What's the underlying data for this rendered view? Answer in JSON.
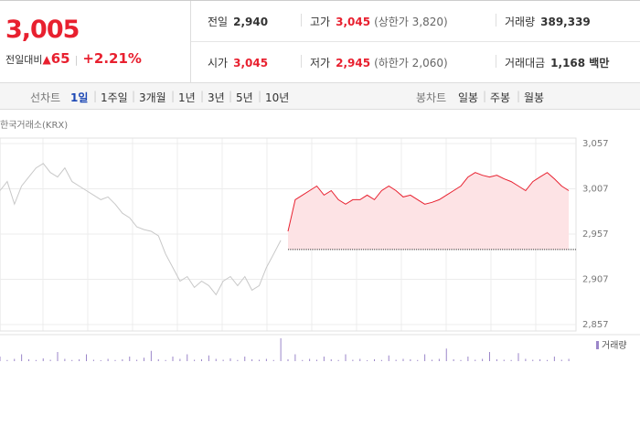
{
  "header": {
    "price": "3,005",
    "change_label": "전일대비",
    "change": "65",
    "rate": "+2.21%",
    "stats": [
      [
        {
          "label": "전일",
          "value": "2,940"
        },
        {
          "label": "고가",
          "value": "3,045",
          "note": "(상한가 3,820)"
        },
        {
          "label": "거래량",
          "value": "389,339"
        }
      ],
      [
        {
          "label": "시가",
          "value": "3,045"
        },
        {
          "label": "저가",
          "value": "2,945",
          "note": "(하한가 2,060)"
        },
        {
          "label": "거래대금",
          "value": "1,168 백만"
        }
      ]
    ]
  },
  "tabs": {
    "line_label": "선차트",
    "line": [
      "1일",
      "1주일",
      "3개월",
      "1년",
      "3년",
      "5년",
      "10년"
    ],
    "candle_label": "봉차트",
    "candle": [
      "일봉",
      "주봉",
      "월봉"
    ]
  },
  "chart_data": {
    "type": "line",
    "source": "한국거래소(KRX)",
    "x": [
      0,
      1,
      2,
      3,
      4,
      5,
      6,
      7,
      8,
      9,
      10,
      11,
      12,
      13,
      14,
      15,
      16,
      17,
      18,
      19,
      20,
      21,
      22,
      23,
      24,
      25,
      26,
      27,
      28,
      29,
      30,
      31,
      32,
      33,
      34,
      35,
      36,
      37,
      38,
      39,
      40,
      41,
      42,
      43,
      44,
      45,
      46,
      47,
      48,
      49,
      50,
      51,
      52,
      53,
      54,
      55,
      56,
      57,
      58,
      59,
      60,
      61,
      62,
      63,
      64,
      65,
      66,
      67,
      68,
      69,
      70,
      71,
      72,
      73,
      74,
      75,
      76,
      77,
      78,
      79
    ],
    "xlim": [
      0,
      80
    ],
    "ylim": [
      2857,
      3057
    ],
    "yticks": [
      {
        "value": 2857,
        "label": "2,857"
      },
      {
        "value": 2907,
        "label": "2,907"
      },
      {
        "value": 2957,
        "label": "2,957"
      },
      {
        "value": 3007,
        "label": "3,007"
      },
      {
        "value": 3057,
        "label": "3,057"
      }
    ],
    "base": 2940,
    "base_color": "#333333",
    "area_color": "#fde3e5",
    "series": [
      {
        "color": "#c8c8c8",
        "values": [
          3005,
          3015,
          2990,
          3010,
          3020,
          3030,
          3035,
          3025,
          3020,
          3030,
          3015,
          3010,
          3005,
          3000,
          2995,
          2998,
          2990,
          2980,
          2975,
          2965,
          2962,
          2960,
          2955,
          2935,
          2920,
          2905,
          2910,
          2898,
          2905,
          2900,
          2890,
          2905,
          2910,
          2900,
          2910,
          2895,
          2900,
          2920,
          2935,
          2950,
          null,
          null,
          null,
          null,
          null,
          null,
          null,
          null,
          null,
          null,
          null,
          null,
          null,
          null,
          null,
          null,
          null,
          null,
          null,
          null,
          null,
          null,
          null,
          null,
          null,
          null,
          null,
          null,
          null,
          null,
          null,
          null,
          null,
          null,
          null,
          null,
          null,
          null,
          null,
          null
        ]
      },
      {
        "color": "#e8202f",
        "values": [
          null,
          null,
          null,
          null,
          null,
          null,
          null,
          null,
          null,
          null,
          null,
          null,
          null,
          null,
          null,
          null,
          null,
          null,
          null,
          null,
          null,
          null,
          null,
          null,
          null,
          null,
          null,
          null,
          null,
          null,
          null,
          null,
          null,
          null,
          null,
          null,
          null,
          null,
          null,
          null,
          2960,
          2995,
          3000,
          3005,
          3010,
          3000,
          3005,
          2995,
          2990,
          2995,
          2995,
          3000,
          2995,
          3005,
          3010,
          3005,
          2998,
          3000,
          2995,
          2990,
          2992,
          2995,
          3000,
          3005,
          3010,
          3020,
          3025,
          3022,
          3020,
          3022,
          3018,
          3015,
          3010,
          3005,
          3015,
          3020,
          3025,
          3018,
          3010,
          3005
        ]
      }
    ],
    "volume": {
      "name": "거래량",
      "color": "#9b86c9",
      "ylim": [
        0,
        100
      ],
      "values": [
        20,
        5,
        10,
        30,
        8,
        5,
        12,
        6,
        40,
        10,
        5,
        8,
        30,
        6,
        4,
        10,
        5,
        8,
        20,
        6,
        15,
        45,
        8,
        5,
        20,
        10,
        30,
        6,
        8,
        25,
        10,
        6,
        12,
        5,
        20,
        8,
        6,
        10,
        5,
        100,
        8,
        30,
        5,
        10,
        6,
        20,
        8,
        5,
        30,
        6,
        10,
        4,
        8,
        5,
        25,
        6,
        10,
        8,
        5,
        30,
        6,
        10,
        55,
        8,
        5,
        20,
        6,
        10,
        40,
        8,
        6,
        5,
        35,
        10,
        6,
        8,
        5,
        20,
        6,
        10
      ]
    }
  }
}
